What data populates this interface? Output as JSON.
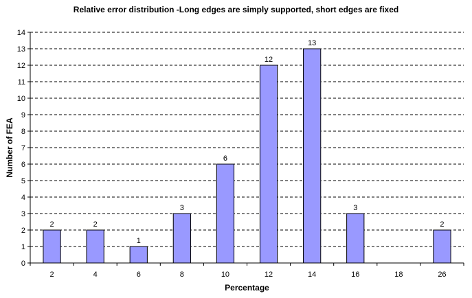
{
  "chart_data": {
    "type": "bar",
    "title": "Relative error distribution -Long edges  are simply supported, short edges are fixed",
    "xlabel": "Percentage",
    "ylabel": "Number of FEA",
    "categories": [
      "2",
      "4",
      "6",
      "8",
      "10",
      "12",
      "14",
      "16",
      "18",
      "26"
    ],
    "values": [
      2,
      2,
      1,
      3,
      6,
      12,
      13,
      3,
      0,
      2
    ],
    "ylim": [
      0,
      14
    ],
    "ytick_step": 1,
    "grid": "horizontal dashed",
    "legend": "none",
    "colors": {
      "bar_fill": "#9999ff",
      "bar_stroke": "#000000",
      "grid": "#000000"
    }
  }
}
